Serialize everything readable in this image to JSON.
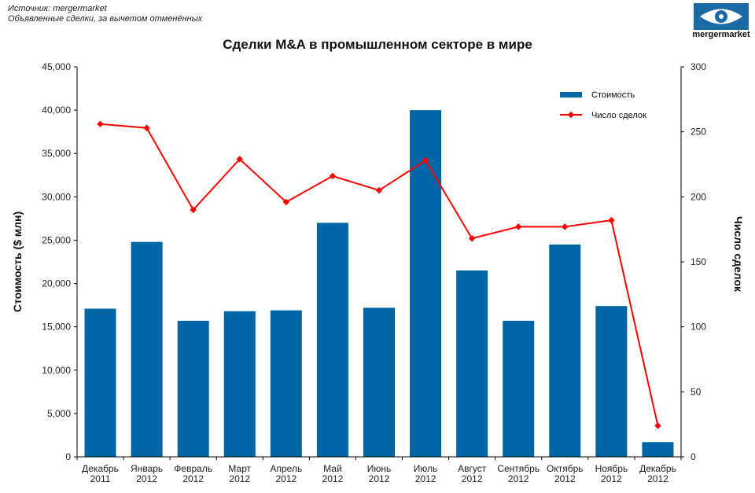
{
  "source": {
    "line1": "Источник: mergermarket",
    "line2": "Объявленные сделки, за вычетом отменённых"
  },
  "logo": {
    "text": "mergermarket",
    "color": "#1a6aa6"
  },
  "chart_data": {
    "type": "bar",
    "title": "Сделки M&A в промышленном секторе в мире",
    "categories": [
      [
        "Декабрь",
        "2011"
      ],
      [
        "Январь",
        "2012"
      ],
      [
        "Февраль",
        "2012"
      ],
      [
        "Март",
        "2012"
      ],
      [
        "Апрель",
        "2012"
      ],
      [
        "Май",
        "2012"
      ],
      [
        "Июнь",
        "2012"
      ],
      [
        "Июль",
        "2012"
      ],
      [
        "Август",
        "2012"
      ],
      [
        "Сентябрь",
        "2012"
      ],
      [
        "Октябрь",
        "2012"
      ],
      [
        "Ноябрь",
        "2012"
      ],
      [
        "Декабрь",
        "2012"
      ]
    ],
    "series": [
      {
        "name": "Стоимость",
        "type": "bar",
        "axis": "left",
        "color": "#0066a6",
        "values": [
          17100,
          24800,
          15700,
          16800,
          16900,
          27000,
          17200,
          40000,
          21500,
          15700,
          24500,
          17400,
          1700
        ]
      },
      {
        "name": "Число сделок",
        "type": "line",
        "axis": "right",
        "color": "#ff0000",
        "values": [
          256,
          253,
          190,
          229,
          196,
          216,
          205,
          228,
          168,
          177,
          177,
          182,
          24
        ]
      }
    ],
    "y_left": {
      "label": "Стоимость ($ млн)",
      "ylim": [
        0,
        45000
      ],
      "ticks": [
        "0",
        "5,000",
        "10,000",
        "15,000",
        "20,000",
        "25,000",
        "30,000",
        "35,000",
        "40,000",
        "45,000"
      ]
    },
    "y_right": {
      "label": "Число сделок",
      "ylim": [
        0,
        300
      ],
      "ticks": [
        "0",
        "50",
        "100",
        "150",
        "200",
        "250",
        "300"
      ]
    },
    "grid": false,
    "legend_position": "top-right"
  }
}
